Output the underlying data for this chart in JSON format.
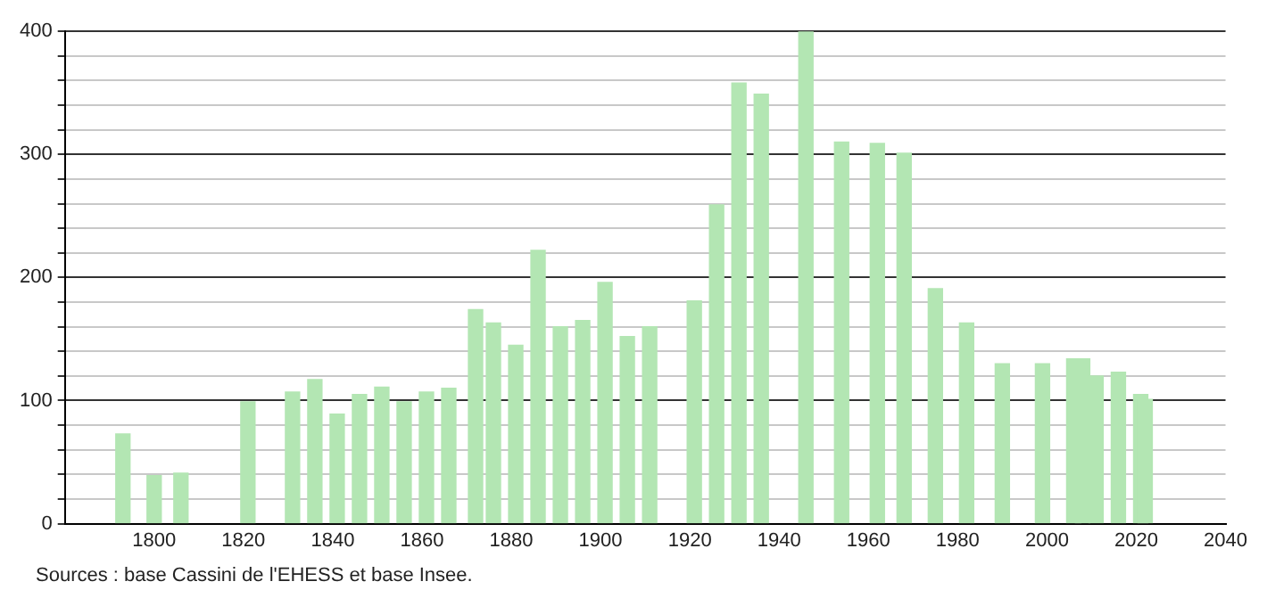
{
  "chart_data": {
    "type": "bar",
    "x": [
      1793,
      1800,
      1806,
      1821,
      1831,
      1836,
      1841,
      1846,
      1851,
      1856,
      1861,
      1866,
      1872,
      1876,
      1881,
      1886,
      1891,
      1896,
      1901,
      1906,
      1911,
      1921,
      1926,
      1931,
      1936,
      1946,
      1954,
      1962,
      1968,
      1975,
      1982,
      1990,
      1999,
      2006,
      2008,
      2011,
      2016,
      2021,
      2022
    ],
    "values": [
      73,
      39,
      41,
      99,
      107,
      117,
      89,
      105,
      111,
      99,
      107,
      110,
      174,
      163,
      145,
      222,
      160,
      165,
      196,
      152,
      160,
      181,
      259,
      358,
      349,
      400,
      310,
      309,
      301,
      191,
      163,
      130,
      130,
      134,
      134,
      120,
      123,
      105,
      101
    ],
    "color": "#b3e6b3",
    "xlim": [
      1780,
      2040
    ],
    "xticks": [
      1800,
      1820,
      1840,
      1860,
      1880,
      1900,
      1920,
      1940,
      1960,
      1980,
      2000,
      2020,
      2040
    ],
    "ylim": [
      0,
      400
    ],
    "yticks": [
      0,
      {
        "value": 20,
        "label": null
      },
      {
        "value": 40,
        "label": null
      },
      {
        "value": 60,
        "label": null
      },
      {
        "value": 80,
        "label": null
      },
      100,
      {
        "value": 120,
        "label": null
      },
      {
        "value": 140,
        "label": null
      },
      {
        "value": 160,
        "label": null
      },
      {
        "value": 180,
        "label": null
      },
      200,
      {
        "value": 220,
        "label": null
      },
      {
        "value": 240,
        "label": null
      },
      {
        "value": 260,
        "label": null
      },
      {
        "value": 280,
        "label": null
      },
      300,
      {
        "value": 320,
        "label": null
      },
      {
        "value": 340,
        "label": null
      },
      {
        "value": 360,
        "label": null
      },
      {
        "value": 380,
        "label": null
      },
      400
    ],
    "grid": "y",
    "annotations": [
      "Sources : base Cassini de l'EHESS et base Insee."
    ]
  }
}
